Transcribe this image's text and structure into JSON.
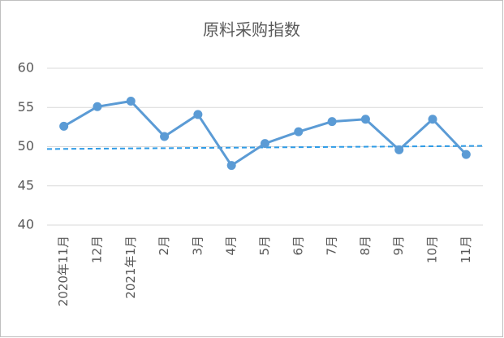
{
  "chart_data": {
    "type": "line",
    "title": "原料采购指数",
    "categories": [
      "2020年11月",
      "12月",
      "2021年1月",
      "2月",
      "3月",
      "4月",
      "5月",
      "6月",
      "7月",
      "8月",
      "9月",
      "10月",
      "11月"
    ],
    "series": [
      {
        "color": "#5b9bd5",
        "values": [
          52.6,
          55.1,
          55.8,
          51.3,
          54.1,
          47.6,
          50.4,
          51.9,
          53.2,
          53.5,
          49.6,
          53.5,
          49.0
        ]
      }
    ],
    "trend_line": {
      "color": "#2e9be6",
      "dashed": true,
      "values": [
        49.7,
        50.1
      ]
    },
    "ylim": [
      40,
      60
    ],
    "yticks": [
      40,
      45,
      50,
      55,
      60
    ],
    "grid": true
  }
}
